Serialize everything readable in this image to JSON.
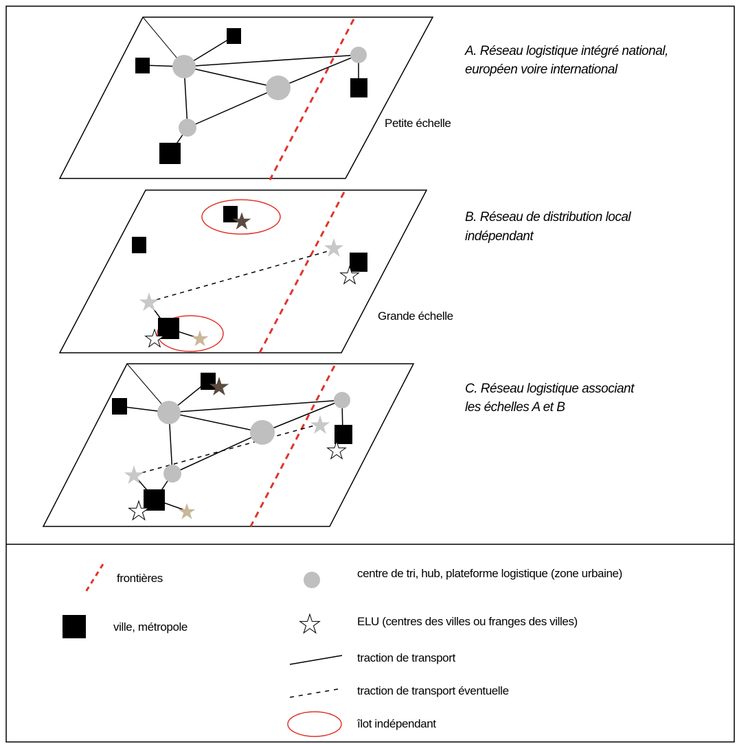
{
  "panels": [
    {
      "id": "A",
      "title_line1": "A. Réseau logistique intégré national,",
      "title_line2": "européen voire international",
      "scale_label": "Petite échelle"
    },
    {
      "id": "B",
      "title_line1": "B. Réseau de distribution local",
      "title_line2": "indépendant",
      "scale_label": "Grande échelle"
    },
    {
      "id": "C",
      "title_line1": "C. Réseau logistique associant",
      "title_line2": "les échelles A et B",
      "scale_label": ""
    }
  ],
  "legend": {
    "frontieres": "frontières",
    "hub": "centre de tri, hub, plateforme logistique (zone urbaine)",
    "ville": "ville, métropole",
    "elu": "ELU (centres des villes ou franges des villes)",
    "traction": "traction de transport",
    "traction_eventuelle": "traction de transport éventuelle",
    "ilot": "îlot indépendant"
  },
  "colors": {
    "border": "#000000",
    "hub": "#bfbfbf",
    "ville": "#000000",
    "frontiere": "#e0352b",
    "ilot": "#e0352b",
    "star_grey": "#c8c8c8",
    "star_brown": "#5b4a3f",
    "star_beige": "#c9b79a",
    "star_white": "#ffffff"
  }
}
